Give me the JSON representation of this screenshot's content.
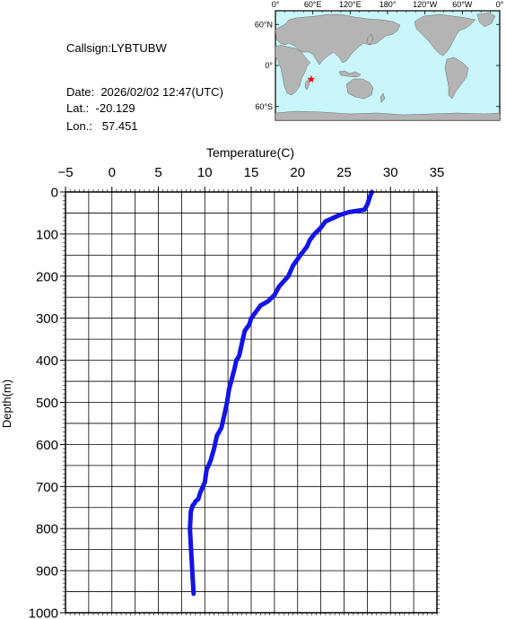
{
  "station": {
    "callsign_label": "Callsign:",
    "callsign": "LYBTUBW",
    "date_label": "Date:",
    "date": "2026/02/02 12:47(UTC)",
    "lat_label": "Lat.:",
    "lat": "-20.129",
    "lon_label": "Lon.:",
    "lon": "57.451"
  },
  "map": {
    "lon_ticks": [
      "0°",
      "60°E",
      "120°E",
      "180°",
      "120°W",
      "60°W",
      "0°"
    ],
    "lat_ticks": [
      "60°N",
      "0°",
      "60°S"
    ],
    "ocean_color": "#c8f6fa",
    "land_color": "#b4b4b4",
    "marker_color": "#ff0000",
    "marker_icon": "star-icon",
    "marker_lon": 57.451,
    "marker_lat": -20.129
  },
  "chart_data": {
    "type": "line",
    "xlabel": "Temperature(C)",
    "ylabel": "Depth(m)",
    "xlim": [
      -5,
      35
    ],
    "ylim": [
      1000,
      0
    ],
    "x_ticks": [
      -5,
      0,
      5,
      10,
      15,
      20,
      25,
      30,
      35
    ],
    "y_ticks": [
      0,
      100,
      200,
      300,
      400,
      500,
      600,
      700,
      800,
      900,
      1000
    ],
    "grid": true,
    "line_color": "#1414e6",
    "series": [
      {
        "x": [
          28.0,
          27.8,
          27.5,
          27.2,
          25.5,
          24.5,
          23.0,
          22.5,
          21.8,
          21.3,
          21.0,
          20.3,
          19.5,
          19.0,
          18.0,
          17.5,
          16.8,
          16.0,
          15.5,
          15.0,
          14.8,
          14.3,
          14.0,
          13.7,
          13.4,
          13.2,
          12.9,
          12.6,
          12.4,
          12.1,
          11.8,
          11.3,
          11.0,
          10.6,
          10.2,
          10.0,
          9.8,
          9.5,
          9.3,
          9.0,
          8.9,
          8.7,
          8.5,
          8.4,
          8.5,
          8.6,
          8.7,
          8.8
        ],
        "y": [
          0,
          10,
          30,
          42,
          48,
          55,
          70,
          85,
          100,
          115,
          130,
          150,
          175,
          200,
          225,
          245,
          260,
          270,
          285,
          300,
          315,
          330,
          360,
          390,
          400,
          420,
          445,
          470,
          500,
          530,
          560,
          580,
          610,
          640,
          660,
          690,
          700,
          715,
          730,
          735,
          740,
          745,
          760,
          800,
          840,
          880,
          920,
          955
        ]
      }
    ]
  }
}
